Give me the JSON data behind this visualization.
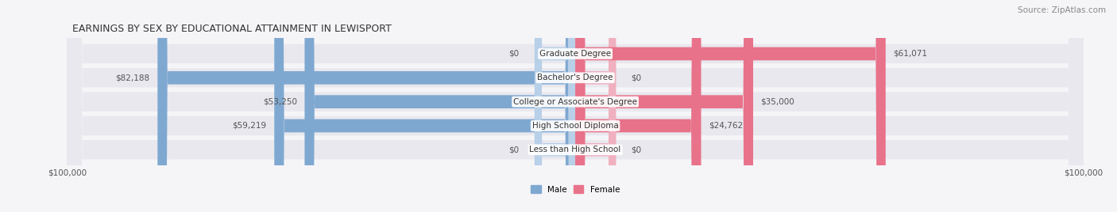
{
  "title": "EARNINGS BY SEX BY EDUCATIONAL ATTAINMENT IN LEWISPORT",
  "source": "Source: ZipAtlas.com",
  "categories": [
    "Less than High School",
    "High School Diploma",
    "College or Associate's Degree",
    "Bachelor's Degree",
    "Graduate Degree"
  ],
  "male_values": [
    0,
    59219,
    53250,
    82188,
    0
  ],
  "female_values": [
    0,
    24762,
    35000,
    0,
    61071
  ],
  "male_labels": [
    "$0",
    "$59,219",
    "$53,250",
    "$82,188",
    "$0"
  ],
  "female_labels": [
    "$0",
    "$24,762",
    "$35,000",
    "$0",
    "$61,071"
  ],
  "male_color": "#7fa8d1",
  "male_color_light": "#b8d0e8",
  "female_color": "#e8728a",
  "female_color_light": "#f0b0bf",
  "bar_bg_color": "#e8e8ee",
  "axis_max": 100000,
  "background_color": "#f5f5f8",
  "bar_row_bg": "#ededf2",
  "title_fontsize": 9,
  "source_fontsize": 7.5,
  "label_fontsize": 7.5,
  "category_fontsize": 7.5
}
